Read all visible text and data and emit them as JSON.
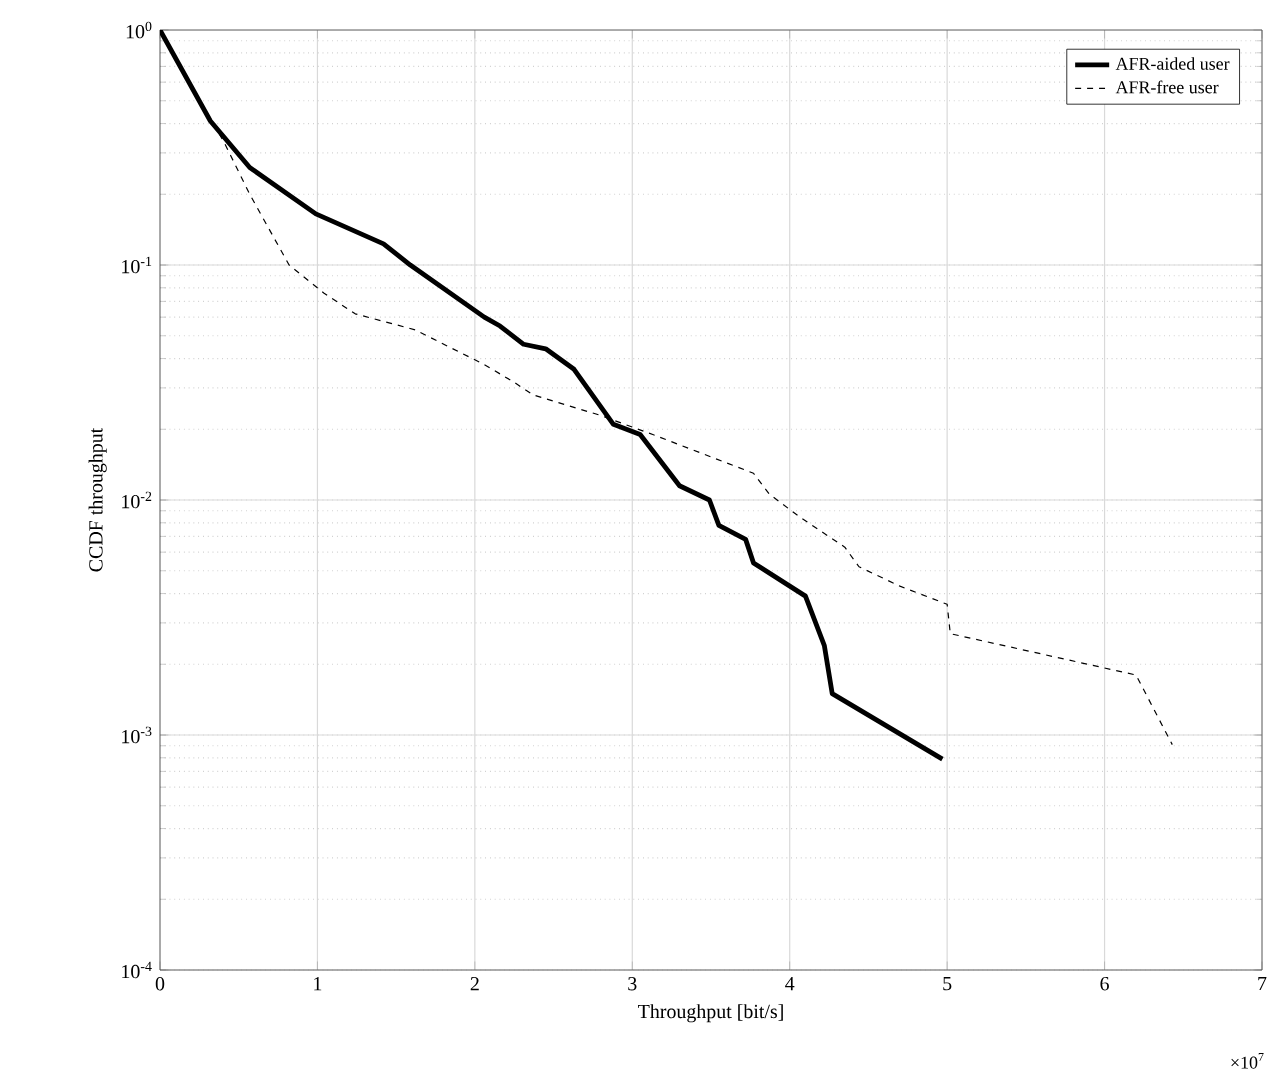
{
  "chart_data": {
    "type": "line",
    "xlabel": "Throughput [bit/s]",
    "ylabel": "CCDF throughput",
    "annotations": [
      "×10$^{7}$"
    ],
    "xlim": [
      0,
      7
    ],
    "xticks": [
      0,
      1,
      2,
      3,
      4,
      5,
      6,
      7
    ],
    "ylim": [
      0.0001,
      1
    ],
    "yticks": [
      {
        "value": 0.0001,
        "label": "10$^{-4}$"
      },
      {
        "value": 0.001,
        "label": "10$^{-3}$"
      },
      {
        "value": 0.01,
        "label": "10$^{-2}$"
      },
      {
        "value": 0.1,
        "label": "10$^{-1}$"
      },
      {
        "value": 1,
        "label": "10$^{0}$"
      }
    ],
    "log": "y",
    "grid": true,
    "legend": "top right",
    "marker": "none",
    "series": [
      {
        "name": "AFR-aided user",
        "color": "#000000",
        "line_style": "solid",
        "x": [
          0,
          0.32,
          0.57,
          0.99,
          1.42,
          1.59,
          2.06,
          2.16,
          2.31,
          2.45,
          2.63,
          2.88,
          3.05,
          3.3,
          3.49,
          3.55,
          3.72,
          3.77,
          4.1,
          4.22,
          4.27,
          4.97
        ],
        "values": [
          1,
          0.41,
          0.26,
          0.165,
          0.123,
          0.1,
          0.06,
          0.055,
          0.046,
          0.044,
          0.036,
          0.021,
          0.019,
          0.0115,
          0.01,
          0.0078,
          0.0068,
          0.0054,
          0.0039,
          0.0024,
          0.0015,
          0.00079
        ]
      },
      {
        "name": "AFR-free user",
        "color": "#000000",
        "line_style": "dashed",
        "x": [
          0,
          0.41,
          0.57,
          0.82,
          1.04,
          1.24,
          1.62,
          2.05,
          2.24,
          2.37,
          2.79,
          3.13,
          3.77,
          3.87,
          4.06,
          4.35,
          4.44,
          4.7,
          5.0,
          5.02,
          6.2,
          6.43
        ],
        "values": [
          1,
          0.33,
          0.2,
          0.1,
          0.076,
          0.062,
          0.053,
          0.038,
          0.032,
          0.028,
          0.023,
          0.019,
          0.013,
          0.0106,
          0.0085,
          0.0063,
          0.0052,
          0.0043,
          0.0036,
          0.0027,
          0.0018,
          0.00091
        ]
      }
    ]
  }
}
